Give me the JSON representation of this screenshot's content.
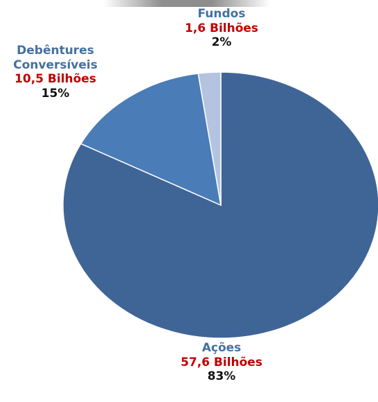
{
  "chart_data": {
    "type": "pie",
    "title": "",
    "categories": [
      "Ações",
      "Debêntures Conversíveis",
      "Fundos"
    ],
    "values": [
      57.6,
      10.5,
      1.6
    ],
    "colors": [
      "#3f6597",
      "#4a7cb8",
      "#b4c4e0"
    ],
    "slices": [
      {
        "name_lines": [
          "Ações"
        ],
        "amount": "57,6 Bilhões",
        "percent": "83%",
        "value": 57.6,
        "color": "#3f6597"
      },
      {
        "name_lines": [
          "Debêntures",
          "Conversíveis"
        ],
        "amount": "10,5 Bilhões",
        "percent": "15%",
        "value": 10.5,
        "color": "#4a7cb8"
      },
      {
        "name_lines": [
          "Fundos"
        ],
        "amount": "1,6 Bilhões",
        "percent": "2%",
        "value": 1.6,
        "color": "#b4c4e0"
      }
    ],
    "legend": "none"
  }
}
